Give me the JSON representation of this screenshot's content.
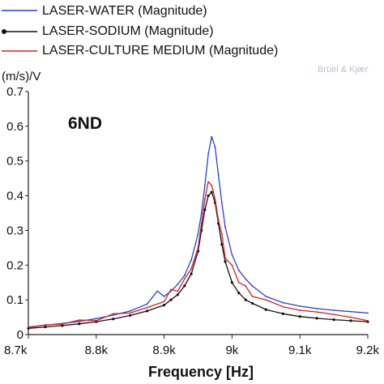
{
  "chart_data": {
    "type": "line",
    "ylabel": "(m/s)/V",
    "xlabel": "Frequency [Hz]",
    "annotation": "6ND",
    "watermark": "Brüel & Kjær",
    "xlim": [
      8700,
      9200
    ],
    "ylim": [
      0,
      0.7
    ],
    "x_ticks": [
      8700,
      8800,
      8900,
      9000,
      9100,
      9200
    ],
    "x_tick_labels": [
      "8.7k",
      "8.8k",
      "8.9k",
      "9k",
      "9.1k",
      "9.2k"
    ],
    "y_ticks": [
      0,
      0.1,
      0.2,
      0.3,
      0.4,
      0.5,
      0.6,
      0.7
    ],
    "y_tick_labels": [
      "0",
      "0.1",
      "0.2",
      "0.3",
      "0.4",
      "0.5",
      "0.6",
      "0.7"
    ],
    "grid": false,
    "legend_position": "top",
    "series": [
      {
        "name": "LASER-WATER (Magnitude)",
        "color": "#2f3fd0",
        "marker": "none",
        "x": [
          8700,
          8725,
          8750,
          8775,
          8800,
          8825,
          8850,
          8875,
          8890,
          8900,
          8910,
          8920,
          8930,
          8940,
          8950,
          8955,
          8960,
          8965,
          8970,
          8975,
          8980,
          8985,
          8990,
          9000,
          9010,
          9020,
          9030,
          9050,
          9075,
          9100,
          9125,
          9150,
          9175,
          9200
        ],
        "y": [
          0.022,
          0.027,
          0.032,
          0.038,
          0.046,
          0.056,
          0.068,
          0.088,
          0.125,
          0.11,
          0.125,
          0.145,
          0.17,
          0.215,
          0.29,
          0.35,
          0.43,
          0.52,
          0.57,
          0.54,
          0.46,
          0.38,
          0.31,
          0.23,
          0.185,
          0.16,
          0.14,
          0.11,
          0.092,
          0.082,
          0.075,
          0.07,
          0.066,
          0.062
        ]
      },
      {
        "name": "LASER-SODIUM (Magnitude)",
        "color": "#111111",
        "marker": "dot",
        "x": [
          8700,
          8725,
          8750,
          8775,
          8800,
          8825,
          8850,
          8875,
          8900,
          8910,
          8920,
          8930,
          8940,
          8950,
          8955,
          8960,
          8965,
          8970,
          8975,
          8980,
          8985,
          8990,
          9000,
          9010,
          9020,
          9030,
          9050,
          9075,
          9100,
          9125,
          9150,
          9175,
          9200
        ],
        "y": [
          0.018,
          0.022,
          0.026,
          0.031,
          0.037,
          0.045,
          0.055,
          0.068,
          0.085,
          0.1,
          0.115,
          0.14,
          0.175,
          0.24,
          0.3,
          0.36,
          0.4,
          0.41,
          0.38,
          0.32,
          0.26,
          0.21,
          0.15,
          0.12,
          0.1,
          0.09,
          0.072,
          0.06,
          0.052,
          0.047,
          0.043,
          0.04,
          0.037
        ]
      },
      {
        "name": "LASER-CULTURE MEDIUM (Magnitude)",
        "color": "#d42020",
        "marker": "none",
        "x": [
          8700,
          8725,
          8750,
          8775,
          8800,
          8825,
          8850,
          8875,
          8900,
          8910,
          8920,
          8930,
          8940,
          8950,
          8955,
          8960,
          8965,
          8970,
          8975,
          8980,
          8985,
          8990,
          9000,
          9010,
          9020,
          9030,
          9050,
          9075,
          9100,
          9125,
          9150,
          9175,
          9200
        ],
        "y": [
          0.02,
          0.028,
          0.03,
          0.042,
          0.04,
          0.06,
          0.062,
          0.078,
          0.095,
          0.13,
          0.125,
          0.16,
          0.19,
          0.25,
          0.32,
          0.39,
          0.44,
          0.43,
          0.39,
          0.33,
          0.29,
          0.22,
          0.2,
          0.15,
          0.14,
          0.11,
          0.1,
          0.08,
          0.07,
          0.065,
          0.058,
          0.05,
          0.04
        ]
      }
    ]
  }
}
